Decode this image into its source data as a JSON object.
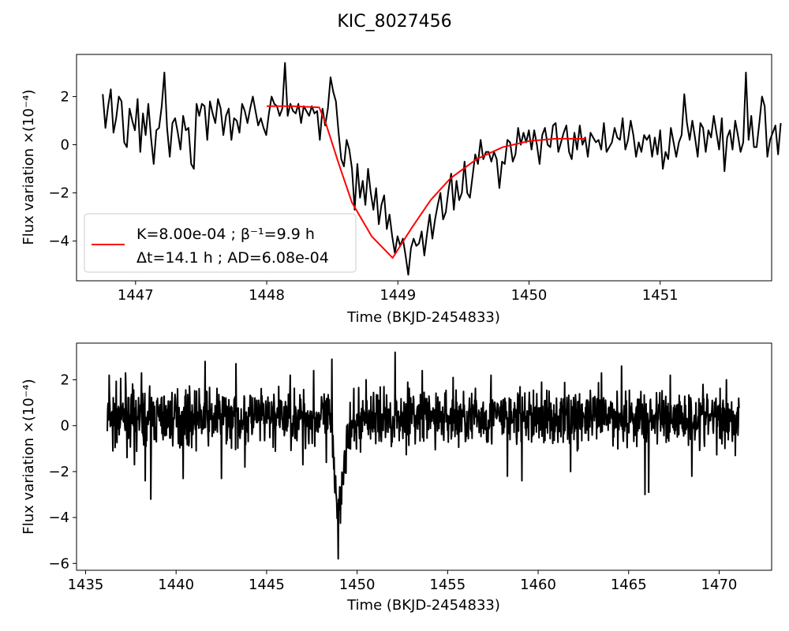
{
  "figure_title": "KIC_8027456",
  "chart_data": [
    {
      "type": "line",
      "xlabel": "Time (BKJD-2454833)",
      "ylabel": "Flux variation ×(10⁻⁴)",
      "xlim": [
        1446.55,
        1451.85
      ],
      "ylim": [
        -5.65,
        3.75
      ],
      "xticks": [
        1447,
        1448,
        1449,
        1450,
        1451
      ],
      "yticks": [
        -4,
        -2,
        0,
        2
      ],
      "ytick_labels": [
        "−4",
        "−2",
        "0",
        "2"
      ],
      "grid": false,
      "legend_position": "lower-left",
      "legend": {
        "line1": "K=8.00e-04 ; β⁻¹=9.9 h",
        "line2": "Δt=14.1 h ; AD=6.08e-04"
      },
      "series": [
        {
          "name": "observed flux",
          "color": "#000000",
          "x_start": 1446.75,
          "x_step": 0.020433,
          "values": [
            2.1,
            0.7,
            1.6,
            2.3,
            0.5,
            1.1,
            2.0,
            1.8,
            0.1,
            -0.1,
            1.5,
            1.0,
            0.6,
            1.9,
            -0.3,
            1.3,
            0.4,
            1.7,
            0.3,
            -0.8,
            0.6,
            0.7,
            1.6,
            3.0,
            0.7,
            -0.5,
            0.9,
            1.1,
            0.5,
            -0.2,
            1.2,
            0.6,
            0.7,
            -0.8,
            -1.0,
            1.7,
            1.2,
            1.7,
            1.6,
            0.2,
            1.8,
            1.3,
            0.9,
            1.9,
            1.5,
            0.4,
            1.2,
            1.5,
            0.2,
            1.1,
            1.0,
            0.5,
            1.7,
            1.4,
            0.9,
            1.5,
            2.0,
            1.4,
            0.8,
            1.1,
            0.7,
            0.4,
            1.3,
            2.0,
            1.7,
            1.6,
            1.2,
            1.5,
            3.4,
            1.2,
            1.7,
            1.4,
            1.3,
            1.7,
            0.9,
            1.6,
            1.4,
            1.2,
            1.6,
            1.3,
            1.4,
            0.2,
            1.5,
            0.8,
            1.5,
            2.8,
            2.2,
            1.8,
            0.5,
            -0.6,
            -0.9,
            0.2,
            -0.2,
            -1.0,
            -2.7,
            -0.8,
            -2.2,
            -1.5,
            -2.5,
            -1.0,
            -2.0,
            -2.7,
            -1.8,
            -3.3,
            -2.5,
            -2.1,
            -3.5,
            -2.9,
            -3.8,
            -4.5,
            -3.8,
            -4.2,
            -3.9,
            -4.6,
            -5.4,
            -4.3,
            -3.9,
            -4.2,
            -4.1,
            -3.6,
            -4.6,
            -3.7,
            -2.9,
            -3.9,
            -3.1,
            -2.5,
            -2.0,
            -3.1,
            -2.8,
            -1.9,
            -1.2,
            -2.7,
            -1.5,
            -2.3,
            -2.0,
            -0.7,
            -2.0,
            -2.2,
            -1.3,
            -0.4,
            -0.8,
            0.2,
            -0.6,
            -0.3,
            -0.3,
            -0.7,
            -0.3,
            -0.6,
            -1.8,
            -0.7,
            -0.8,
            0.2,
            0.1,
            -0.7,
            -0.4,
            0.7,
            0.0,
            0.5,
            0.1,
            0.6,
            -0.2,
            0.6,
            0.0,
            -0.8,
            0.4,
            0.7,
            0.0,
            -0.1,
            0.8,
            0.9,
            -0.3,
            0.1,
            0.5,
            0.8,
            -0.3,
            -0.6,
            0.5,
            -0.2,
            0.8,
            0.0,
            0.3,
            -0.5,
            0.5,
            0.3,
            0.1,
            0.2,
            -0.2,
            0.9,
            -0.3,
            -0.1,
            0.1,
            0.7,
            0.3,
            0.2,
            1.1,
            -0.2,
            0.2,
            1.0,
            0.4,
            -0.5,
            0.1,
            -0.3,
            0.4,
            0.2,
            0.4,
            -0.5,
            0.3,
            -0.4,
            0.6,
            -1.0,
            -0.3,
            -0.6,
            0.7,
            0.1,
            -0.5,
            0.1,
            0.4,
            2.1,
            0.9,
            0.2,
            1.0,
            0.3,
            -0.5,
            0.9,
            0.7,
            -0.3,
            0.6,
            0.3,
            1.2,
            0.5,
            -0.2,
            1.1,
            -1.1,
            0.3,
            0.6,
            -0.2,
            1.0,
            0.4,
            -0.3,
            0.1,
            3.0,
            0.2,
            1.2,
            -0.1,
            -0.1,
            0.9,
            2.0,
            1.6,
            -0.5,
            0.2,
            0.5,
            0.8,
            -0.4,
            0.9
          ]
        },
        {
          "name": "fit",
          "color": "#ff0000",
          "x": [
            1448.0,
            1448.2,
            1448.4,
            1448.45,
            1448.55,
            1448.65,
            1448.8,
            1448.96,
            1449.1,
            1449.25,
            1449.4,
            1449.6,
            1449.8,
            1450.0,
            1450.2,
            1450.43
          ],
          "values": [
            1.6,
            1.6,
            1.55,
            0.9,
            -0.8,
            -2.4,
            -3.8,
            -4.7,
            -3.5,
            -2.3,
            -1.4,
            -0.6,
            -0.1,
            0.15,
            0.25,
            0.25
          ]
        }
      ]
    },
    {
      "type": "line",
      "xlabel": "Time (BKJD-2454833)",
      "ylabel": "Flux variation ×(10⁻⁴)",
      "xlim": [
        1434.5,
        1472.9
      ],
      "ylim": [
        -6.3,
        3.6
      ],
      "xticks": [
        1435,
        1440,
        1445,
        1450,
        1455,
        1460,
        1465,
        1470
      ],
      "yticks": [
        -6,
        -4,
        -2,
        0,
        2
      ],
      "ytick_labels": [
        "−6",
        "−4",
        "−2",
        "0",
        "2"
      ],
      "grid": false,
      "series": [
        {
          "name": "full light curve",
          "color": "#000000",
          "x_start": 1436.2,
          "x_end": 1471.1,
          "noise_seed": 7,
          "spikes": [
            [
              1436.3,
              2.2
            ],
            [
              1436.5,
              -1.1
            ],
            [
              1437.2,
              2.3
            ],
            [
              1437.7,
              -1.7
            ],
            [
              1438.1,
              2.3
            ],
            [
              1438.3,
              -2.4
            ],
            [
              1438.6,
              -3.2
            ],
            [
              1440.4,
              -2.3
            ],
            [
              1441.6,
              2.8
            ],
            [
              1442.5,
              -2.3
            ],
            [
              1443.3,
              2.7
            ],
            [
              1443.8,
              -1.8
            ],
            [
              1446.3,
              2.2
            ],
            [
              1447.0,
              -1.7
            ],
            [
              1447.6,
              2.4
            ],
            [
              1448.3,
              -1.6
            ],
            [
              1448.6,
              2.9
            ],
            [
              1450.5,
              2.0
            ],
            [
              1452.1,
              3.2
            ],
            [
              1452.8,
              1.9
            ],
            [
              1453.6,
              2.4
            ],
            [
              1455.3,
              2.1
            ],
            [
              1457.4,
              2.2
            ],
            [
              1458.3,
              -2.2
            ],
            [
              1459.1,
              -2.4
            ],
            [
              1460.2,
              1.9
            ],
            [
              1461.8,
              -2.0
            ],
            [
              1463.5,
              2.3
            ],
            [
              1464.6,
              2.6
            ],
            [
              1465.9,
              -3.0
            ],
            [
              1466.1,
              -2.9
            ],
            [
              1467.3,
              2.2
            ],
            [
              1468.5,
              -2.2
            ],
            [
              1469.1,
              1.8
            ],
            [
              1470.4,
              2.0
            ],
            [
              1470.9,
              -1.3
            ]
          ],
          "dip": {
            "start": 1448.4,
            "min_x": 1448.96,
            "min_value": -5.8,
            "end": 1450.3
          }
        }
      ]
    }
  ]
}
